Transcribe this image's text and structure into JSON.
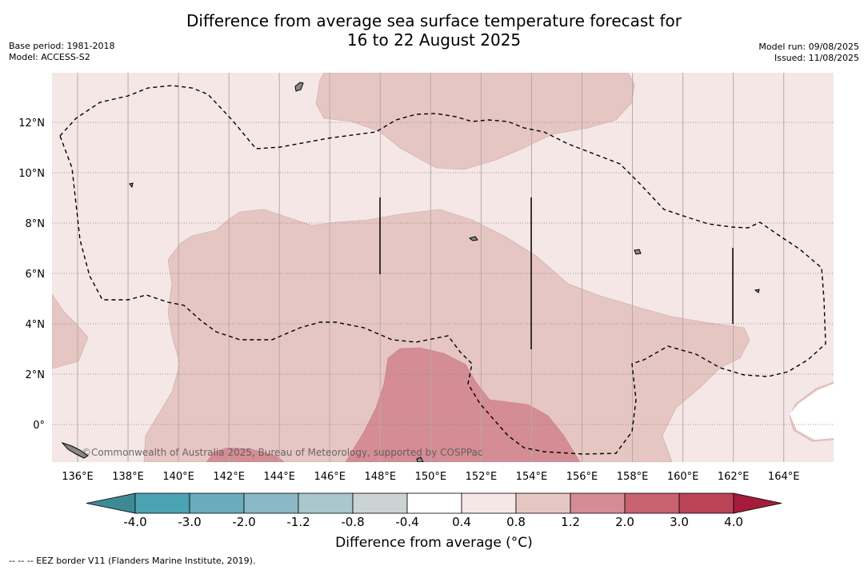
{
  "header": {
    "title_line1": "Difference from average sea surface temperature forecast for",
    "title_line2": "16 to 22 August 2025",
    "base_period": "Base period: 1981-2018",
    "model": "Model: ACCESS-S2",
    "model_run": "Model run: 09/08/2025",
    "issued": "Issued: 11/08/2025"
  },
  "map": {
    "lon_ticks": [
      "136°E",
      "138°E",
      "140°E",
      "142°E",
      "144°E",
      "146°E",
      "148°E",
      "150°E",
      "152°E",
      "154°E",
      "156°E",
      "158°E",
      "160°E",
      "162°E",
      "164°E"
    ],
    "lat_ticks": [
      "12°N",
      "10°N",
      "8°N",
      "6°N",
      "4°N",
      "2°N",
      "0°"
    ],
    "watermark": "©Commonwealth of Australia 2025, Bureau of Meteorology, supported by COSPPac",
    "colors": {
      "background_0_4_to_0_8": "#f4e7e6",
      "band_0_8_to_1_2": "#e6c6c2",
      "band_1_2_to_2_0": "#d48d94",
      "band_2_0_to_3_0": "#c8636f",
      "neutral": "#ffffff",
      "eez_border": "#000000"
    }
  },
  "colorbar": {
    "labels": [
      "-4.0",
      "-3.0",
      "-2.0",
      "-1.2",
      "-0.8",
      "-0.4",
      "0.4",
      "0.8",
      "1.2",
      "2.0",
      "3.0",
      "4.0"
    ],
    "colors": [
      "#3e8a94",
      "#4aa3b3",
      "#6aacbb",
      "#8ab8c4",
      "#a9c7cc",
      "#ccd3d3",
      "#ffffff",
      "#f4e7e6",
      "#e6c6c2",
      "#d48d94",
      "#c8636f",
      "#bb4356",
      "#a51c3a"
    ],
    "title": "Difference from average (°C)"
  },
  "footnote": "--  --  -- EEZ border V11 (Flanders Marine Institute, 2019)."
}
